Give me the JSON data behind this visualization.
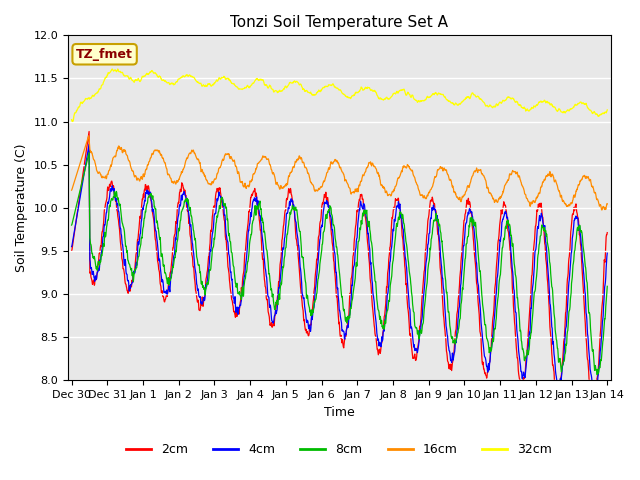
{
  "title": "Tonzi Soil Temperature Set A",
  "xlabel": "Time",
  "ylabel": "Soil Temperature (C)",
  "ylim": [
    8.0,
    12.0
  ],
  "yticks": [
    8.0,
    8.5,
    9.0,
    9.5,
    10.0,
    10.5,
    11.0,
    11.5,
    12.0
  ],
  "annotation_text": "TZ_fmet",
  "annotation_color": "#8B0000",
  "annotation_bg": "#FFFFCC",
  "annotation_border": "#C8A000",
  "line_colors": {
    "2cm": "#FF0000",
    "4cm": "#0000FF",
    "8cm": "#00BB00",
    "16cm": "#FF8C00",
    "32cm": "#FFFF00"
  },
  "bg_color": "#E8E8E8",
  "fig_bg_color": "#FFFFFF",
  "x_tick_labels": [
    "Dec 30",
    "Dec 31",
    "Jan 1",
    "Jan 2",
    "Jan 3",
    "Jan 4",
    "Jan 5",
    "Jan 6",
    "Jan 7",
    "Jan 8",
    "Jan 9",
    "Jan 10",
    "Jan 11",
    "Jan 12",
    "Jan 13",
    "Jan 14"
  ],
  "days": 15
}
